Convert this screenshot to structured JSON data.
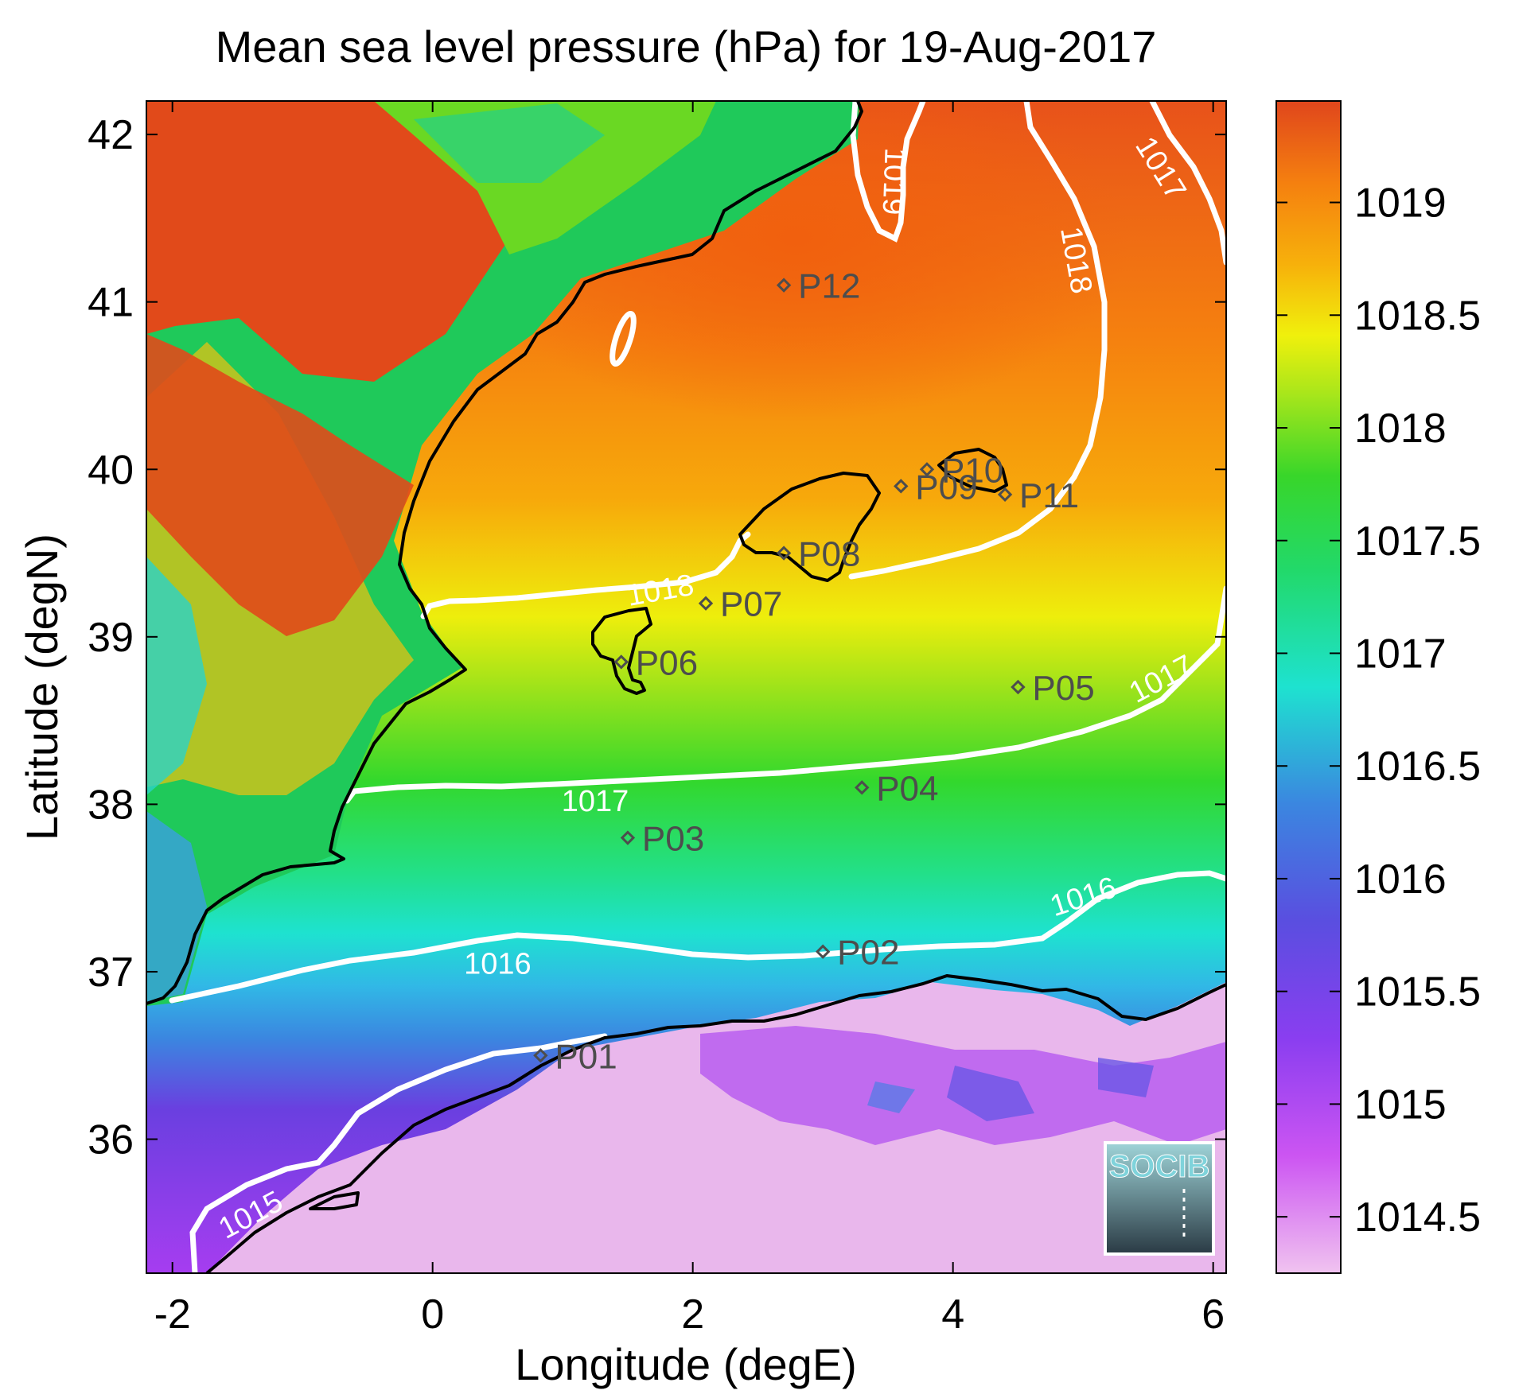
{
  "title": "Mean sea level pressure (hPa) for 19-Aug-2017",
  "xlabel": "Longitude (degE)",
  "ylabel": "Latitude (degN)",
  "logo_text": "SOCIB",
  "colors": {
    "high": "#e0461c",
    "orange": "#f78a12",
    "yellow": "#f2f20a",
    "green": "#27d62e",
    "cyan": "#1de3d2",
    "blue": "#3b86e0",
    "purple": "#6a38e0",
    "magenta": "#cc44f2",
    "pink": "#eab0ea",
    "contour": "#ffffff",
    "coast": "#000000"
  },
  "chart_data": {
    "type": "map",
    "xlim": [
      -2.2,
      6.1
    ],
    "ylim": [
      35.2,
      42.2
    ],
    "xticks": [
      -2,
      0,
      2,
      4,
      6
    ],
    "yticks": [
      36,
      37,
      38,
      39,
      40,
      41,
      42
    ],
    "colorbar": {
      "range": [
        1014.25,
        1019.45
      ],
      "ticks": [
        1014.5,
        1015,
        1015.5,
        1016,
        1016.5,
        1017,
        1017.5,
        1018,
        1018.5,
        1019
      ],
      "tick_labels": [
        "1014.5",
        "1015",
        "1015.5",
        "1016",
        "1016.5",
        "1017",
        "1017.5",
        "1018",
        "1018.5",
        "1019"
      ]
    },
    "contour_labels": [
      {
        "text": "1015",
        "lon": -1.4,
        "lat": 35.55,
        "angle": -28
      },
      {
        "text": "1016",
        "lon": 0.5,
        "lat": 37.05,
        "angle": 0
      },
      {
        "text": "1016",
        "lon": 5.0,
        "lat": 37.45,
        "angle": -18
      },
      {
        "text": "1017",
        "lon": 1.25,
        "lat": 38.02,
        "angle": 0
      },
      {
        "text": "1017",
        "lon": 5.6,
        "lat": 38.75,
        "angle": -28
      },
      {
        "text": "1017",
        "lon": 5.6,
        "lat": 41.8,
        "angle": 58
      },
      {
        "text": "1018",
        "lon": 1.75,
        "lat": 39.28,
        "angle": -10
      },
      {
        "text": "1018",
        "lon": 4.95,
        "lat": 41.25,
        "angle": 80
      },
      {
        "text": "1019",
        "lon": 3.55,
        "lat": 41.72,
        "angle": 92
      }
    ],
    "stations": [
      {
        "name": "P01",
        "lon": 0.83,
        "lat": 36.5
      },
      {
        "name": "P02",
        "lon": 3.0,
        "lat": 37.12
      },
      {
        "name": "P03",
        "lon": 1.5,
        "lat": 37.8
      },
      {
        "name": "P04",
        "lon": 3.3,
        "lat": 38.1
      },
      {
        "name": "P05",
        "lon": 4.5,
        "lat": 38.7
      },
      {
        "name": "P06",
        "lon": 1.45,
        "lat": 38.85
      },
      {
        "name": "P07",
        "lon": 2.1,
        "lat": 39.2
      },
      {
        "name": "P08",
        "lon": 2.7,
        "lat": 39.5
      },
      {
        "name": "P09",
        "lon": 3.6,
        "lat": 39.9
      },
      {
        "name": "P10",
        "lon": 3.8,
        "lat": 40.0
      },
      {
        "name": "P11",
        "lon": 4.4,
        "lat": 39.85
      },
      {
        "name": "P12",
        "lon": 2.7,
        "lat": 41.1
      }
    ]
  }
}
